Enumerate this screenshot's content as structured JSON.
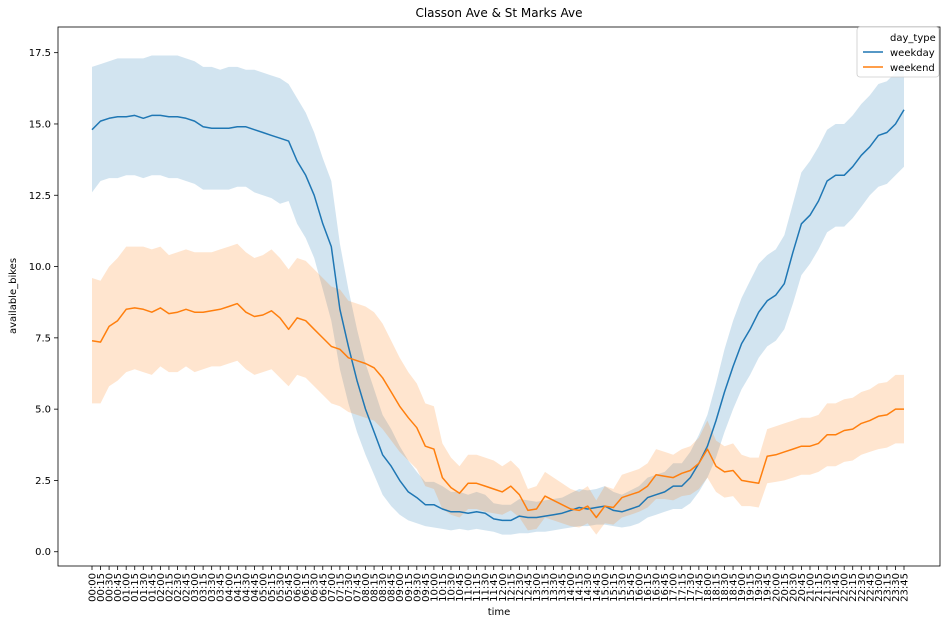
{
  "chart_data": {
    "type": "line",
    "title": "Classon Ave & St Marks Ave",
    "xlabel": "time",
    "ylabel": "available_bikes",
    "ylim": [
      -0.5,
      18.4
    ],
    "yticks": [
      "0.0",
      "2.5",
      "5.0",
      "7.5",
      "10.0",
      "12.5",
      "15.0",
      "17.5"
    ],
    "ytick_values": [
      0,
      2.5,
      5,
      7.5,
      10,
      12.5,
      15,
      17.5
    ],
    "x": [
      "00:00",
      "00:15",
      "00:30",
      "00:45",
      "01:00",
      "01:15",
      "01:30",
      "01:45",
      "02:00",
      "02:15",
      "02:30",
      "02:45",
      "03:00",
      "03:15",
      "03:30",
      "03:45",
      "04:00",
      "04:15",
      "04:30",
      "04:45",
      "05:00",
      "05:15",
      "05:30",
      "05:45",
      "06:00",
      "06:15",
      "06:30",
      "06:45",
      "07:00",
      "07:15",
      "07:30",
      "07:45",
      "08:00",
      "08:15",
      "08:30",
      "08:45",
      "09:00",
      "09:15",
      "09:30",
      "09:45",
      "10:00",
      "10:15",
      "10:30",
      "10:45",
      "11:00",
      "11:15",
      "11:30",
      "11:45",
      "12:00",
      "12:15",
      "12:30",
      "12:45",
      "13:00",
      "13:15",
      "13:30",
      "13:45",
      "14:00",
      "14:15",
      "14:30",
      "14:45",
      "15:00",
      "15:15",
      "15:30",
      "15:45",
      "16:00",
      "16:15",
      "16:30",
      "16:45",
      "17:00",
      "17:15",
      "17:30",
      "17:45",
      "18:00",
      "18:15",
      "18:30",
      "18:45",
      "19:00",
      "19:15",
      "19:30",
      "19:45",
      "20:00",
      "20:15",
      "20:30",
      "20:45",
      "21:00",
      "21:15",
      "21:30",
      "21:45",
      "22:00",
      "22:15",
      "22:30",
      "22:45",
      "23:00",
      "23:15",
      "23:30",
      "23:45"
    ],
    "legend": {
      "title": "day_type",
      "placement": "top-right"
    },
    "grid": false,
    "series": [
      {
        "name": "weekday",
        "color": "#1f77b4",
        "values": [
          14.8,
          15.1,
          15.2,
          15.25,
          15.25,
          15.3,
          15.2,
          15.3,
          15.3,
          15.25,
          15.25,
          15.2,
          15.1,
          14.9,
          14.85,
          14.85,
          14.85,
          14.9,
          14.9,
          14.8,
          14.7,
          14.6,
          14.5,
          14.4,
          13.7,
          13.2,
          12.5,
          11.5,
          10.7,
          8.5,
          7.2,
          6.0,
          5.0,
          4.2,
          3.4,
          3.0,
          2.5,
          2.1,
          1.9,
          1.65,
          1.65,
          1.5,
          1.4,
          1.4,
          1.35,
          1.4,
          1.35,
          1.15,
          1.1,
          1.1,
          1.25,
          1.2,
          1.2,
          1.25,
          1.3,
          1.35,
          1.45,
          1.55,
          1.5,
          1.55,
          1.6,
          1.45,
          1.4,
          1.5,
          1.6,
          1.9,
          2.0,
          2.1,
          2.3,
          2.3,
          2.6,
          3.1,
          3.7,
          4.6,
          5.6,
          6.5,
          7.3,
          7.8,
          8.4,
          8.8,
          9.0,
          9.4,
          10.5,
          11.5,
          11.8,
          12.3,
          13.0,
          13.2,
          13.2,
          13.5,
          13.9,
          14.2,
          14.6,
          14.7,
          15.0,
          15.5
        ],
        "ci_low": [
          12.6,
          13.0,
          13.1,
          13.1,
          13.2,
          13.2,
          13.1,
          13.2,
          13.2,
          13.1,
          13.1,
          13.0,
          12.9,
          12.7,
          12.7,
          12.7,
          12.7,
          12.8,
          12.8,
          12.6,
          12.5,
          12.4,
          12.2,
          12.3,
          11.5,
          11.0,
          10.3,
          9.2,
          8.1,
          6.4,
          5.2,
          4.2,
          3.4,
          2.7,
          2.0,
          1.6,
          1.3,
          1.1,
          1.0,
          0.9,
          0.85,
          0.8,
          0.75,
          0.8,
          0.75,
          0.8,
          0.75,
          0.7,
          0.6,
          0.6,
          0.65,
          0.65,
          0.7,
          0.7,
          0.75,
          0.8,
          0.85,
          0.9,
          0.9,
          0.95,
          0.95,
          0.9,
          0.85,
          0.9,
          1.0,
          1.2,
          1.3,
          1.4,
          1.5,
          1.5,
          1.7,
          2.1,
          2.6,
          3.3,
          4.2,
          5.0,
          5.7,
          6.2,
          6.8,
          7.2,
          7.4,
          7.8,
          8.7,
          9.7,
          10.1,
          10.6,
          11.2,
          11.4,
          11.4,
          11.7,
          12.1,
          12.5,
          12.8,
          12.9,
          13.2,
          13.5
        ],
        "ci_high": [
          17.0,
          17.1,
          17.2,
          17.3,
          17.3,
          17.3,
          17.3,
          17.4,
          17.4,
          17.4,
          17.4,
          17.3,
          17.2,
          17.0,
          17.0,
          16.9,
          17.0,
          17.0,
          16.9,
          16.9,
          16.8,
          16.7,
          16.6,
          16.4,
          15.9,
          15.4,
          14.7,
          13.8,
          13.0,
          10.8,
          9.2,
          7.8,
          6.6,
          5.7,
          4.8,
          4.3,
          3.7,
          3.2,
          2.8,
          2.45,
          2.45,
          2.3,
          2.1,
          2.1,
          2.0,
          2.1,
          2.0,
          1.7,
          1.65,
          1.65,
          1.85,
          1.8,
          1.75,
          1.8,
          1.85,
          1.9,
          2.05,
          2.2,
          2.15,
          2.2,
          2.3,
          2.1,
          2.0,
          2.15,
          2.3,
          2.6,
          2.7,
          2.8,
          3.1,
          3.1,
          3.5,
          4.1,
          4.8,
          5.9,
          7.1,
          8.1,
          8.9,
          9.5,
          10.1,
          10.4,
          10.6,
          11.1,
          12.2,
          13.3,
          13.7,
          14.2,
          14.8,
          15.0,
          15.0,
          15.3,
          15.7,
          16.0,
          16.4,
          16.5,
          16.8,
          17.3
        ]
      },
      {
        "name": "weekend",
        "color": "#ff7f0e",
        "values": [
          7.4,
          7.35,
          7.9,
          8.1,
          8.5,
          8.55,
          8.5,
          8.4,
          8.55,
          8.35,
          8.4,
          8.5,
          8.4,
          8.4,
          8.45,
          8.5,
          8.6,
          8.7,
          8.4,
          8.25,
          8.3,
          8.45,
          8.2,
          7.8,
          8.2,
          8.1,
          7.8,
          7.5,
          7.2,
          7.1,
          6.8,
          6.7,
          6.6,
          6.45,
          6.1,
          5.6,
          5.1,
          4.7,
          4.35,
          3.7,
          3.6,
          2.6,
          2.25,
          2.05,
          2.4,
          2.4,
          2.3,
          2.2,
          2.1,
          2.3,
          2.0,
          1.45,
          1.5,
          1.95,
          1.8,
          1.65,
          1.5,
          1.45,
          1.6,
          1.2,
          1.6,
          1.55,
          1.9,
          2.0,
          2.1,
          2.3,
          2.7,
          2.65,
          2.6,
          2.75,
          2.85,
          3.1,
          3.6,
          3.0,
          2.8,
          2.85,
          2.5,
          2.45,
          2.4,
          3.35,
          3.4,
          3.5,
          3.6,
          3.7,
          3.7,
          3.8,
          4.1,
          4.1,
          4.25,
          4.3,
          4.5,
          4.6,
          4.75,
          4.8,
          5.0,
          5.0
        ],
        "ci_low": [
          5.2,
          5.2,
          5.8,
          6.0,
          6.3,
          6.4,
          6.3,
          6.2,
          6.5,
          6.3,
          6.3,
          6.5,
          6.3,
          6.4,
          6.5,
          6.5,
          6.6,
          6.7,
          6.4,
          6.2,
          6.3,
          6.4,
          6.1,
          5.8,
          6.2,
          6.1,
          5.8,
          5.5,
          5.2,
          5.1,
          4.9,
          4.8,
          4.7,
          4.6,
          4.3,
          3.9,
          3.5,
          3.2,
          2.9,
          2.3,
          2.2,
          1.5,
          1.3,
          1.2,
          1.5,
          1.5,
          1.4,
          1.35,
          1.3,
          1.45,
          1.2,
          0.75,
          0.8,
          1.2,
          1.1,
          1.0,
          0.9,
          0.85,
          1.0,
          0.6,
          1.0,
          0.95,
          1.2,
          1.3,
          1.4,
          1.55,
          1.85,
          1.85,
          1.8,
          1.95,
          2.0,
          2.2,
          2.6,
          2.1,
          1.9,
          1.95,
          1.6,
          1.6,
          1.55,
          2.4,
          2.45,
          2.5,
          2.6,
          2.7,
          2.7,
          2.8,
          3.0,
          3.0,
          3.15,
          3.2,
          3.4,
          3.5,
          3.6,
          3.65,
          3.8,
          3.8
        ],
        "ci_high": [
          9.6,
          9.5,
          10.0,
          10.3,
          10.7,
          10.7,
          10.7,
          10.6,
          10.7,
          10.4,
          10.5,
          10.6,
          10.5,
          10.5,
          10.5,
          10.6,
          10.7,
          10.8,
          10.5,
          10.3,
          10.4,
          10.6,
          10.3,
          9.9,
          10.3,
          10.2,
          9.9,
          9.6,
          9.3,
          9.2,
          8.8,
          8.7,
          8.6,
          8.4,
          8.0,
          7.4,
          6.8,
          6.3,
          5.9,
          5.2,
          5.1,
          3.8,
          3.3,
          3.0,
          3.4,
          3.4,
          3.3,
          3.2,
          3.0,
          3.2,
          2.9,
          2.2,
          2.3,
          2.8,
          2.6,
          2.4,
          2.2,
          2.1,
          2.3,
          1.8,
          2.3,
          2.2,
          2.7,
          2.8,
          2.9,
          3.1,
          3.6,
          3.5,
          3.4,
          3.6,
          3.7,
          4.0,
          4.6,
          3.9,
          3.7,
          3.8,
          3.4,
          3.3,
          3.3,
          4.3,
          4.4,
          4.5,
          4.6,
          4.7,
          4.7,
          4.8,
          5.2,
          5.2,
          5.35,
          5.4,
          5.6,
          5.7,
          5.9,
          5.95,
          6.2,
          6.2
        ]
      }
    ]
  }
}
